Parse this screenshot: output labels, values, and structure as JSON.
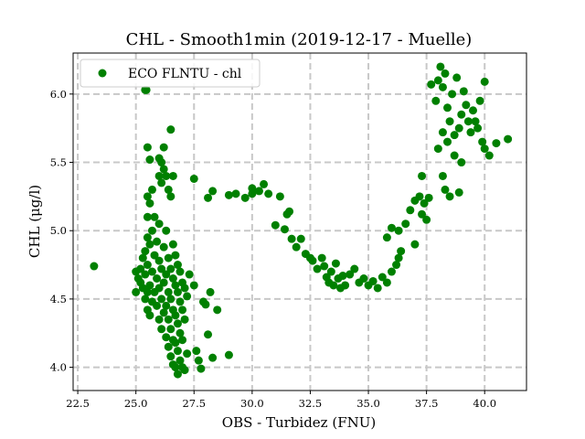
{
  "chart_data": {
    "type": "scatter",
    "title": "CHL - Smooth1min (2019-12-17 - Muelle)",
    "xlabel": "OBS - Turbidez (FNU)",
    "ylabel": "CHL (μg/l)",
    "xlim": [
      22.3,
      41.8
    ],
    "ylim": [
      3.83,
      6.3
    ],
    "xticks": [
      "22.5",
      "25.0",
      "27.5",
      "30.0",
      "32.5",
      "35.0",
      "37.5",
      "40.0"
    ],
    "yticks": [
      "4.0",
      "4.5",
      "5.0",
      "5.5",
      "6.0"
    ],
    "grid": true,
    "grid_style": "dashed",
    "legend_position": "top-left",
    "series": [
      {
        "name": "ECO FLNTU - chl",
        "color": "#008000",
        "points": [
          [
            23.2,
            4.74
          ],
          [
            25.0,
            4.55
          ],
          [
            25.0,
            4.7
          ],
          [
            25.1,
            4.65
          ],
          [
            25.2,
            4.62
          ],
          [
            25.2,
            4.72
          ],
          [
            25.3,
            4.58
          ],
          [
            25.3,
            4.8
          ],
          [
            25.4,
            4.5
          ],
          [
            25.4,
            4.68
          ],
          [
            25.4,
            4.85
          ],
          [
            25.5,
            4.42
          ],
          [
            25.5,
            4.55
          ],
          [
            25.5,
            4.75
          ],
          [
            25.5,
            4.95
          ],
          [
            25.5,
            5.1
          ],
          [
            25.5,
            5.25
          ],
          [
            25.6,
            4.38
          ],
          [
            25.6,
            4.6
          ],
          [
            25.6,
            4.9
          ],
          [
            25.6,
            5.2
          ],
          [
            25.4,
            6.03
          ],
          [
            25.45,
            6.03
          ],
          [
            25.5,
            5.61
          ],
          [
            25.6,
            5.52
          ],
          [
            25.7,
            4.48
          ],
          [
            25.7,
            4.7
          ],
          [
            25.7,
            5.0
          ],
          [
            25.7,
            5.3
          ],
          [
            25.8,
            4.55
          ],
          [
            25.8,
            4.82
          ],
          [
            25.8,
            5.1
          ],
          [
            25.9,
            4.45
          ],
          [
            25.9,
            4.65
          ],
          [
            25.9,
            4.92
          ],
          [
            26.0,
            4.35
          ],
          [
            26.0,
            4.58
          ],
          [
            26.0,
            4.78
          ],
          [
            26.0,
            5.05
          ],
          [
            26.0,
            5.4
          ],
          [
            26.0,
            5.53
          ],
          [
            26.1,
            4.28
          ],
          [
            26.1,
            4.5
          ],
          [
            26.1,
            4.72
          ],
          [
            26.1,
            5.35
          ],
          [
            26.1,
            5.5
          ],
          [
            26.2,
            4.4
          ],
          [
            26.2,
            4.62
          ],
          [
            26.2,
            4.88
          ],
          [
            26.2,
            5.61
          ],
          [
            26.2,
            5.45
          ],
          [
            26.3,
            4.22
          ],
          [
            26.3,
            4.45
          ],
          [
            26.3,
            4.68
          ],
          [
            26.3,
            5.0
          ],
          [
            26.3,
            5.4
          ],
          [
            26.4,
            4.15
          ],
          [
            26.4,
            4.35
          ],
          [
            26.4,
            4.55
          ],
          [
            26.4,
            4.8
          ],
          [
            26.4,
            5.3
          ],
          [
            26.5,
            4.08
          ],
          [
            26.5,
            4.28
          ],
          [
            26.5,
            4.5
          ],
          [
            26.5,
            4.72
          ],
          [
            26.5,
            5.25
          ],
          [
            26.5,
            5.74
          ],
          [
            26.6,
            4.02
          ],
          [
            26.6,
            4.2
          ],
          [
            26.6,
            4.42
          ],
          [
            26.6,
            4.65
          ],
          [
            26.6,
            4.9
          ],
          [
            26.6,
            5.4
          ],
          [
            26.7,
            4.0
          ],
          [
            26.7,
            4.18
          ],
          [
            26.7,
            4.38
          ],
          [
            26.7,
            4.6
          ],
          [
            26.7,
            4.82
          ],
          [
            26.8,
            3.95
          ],
          [
            26.8,
            4.12
          ],
          [
            26.8,
            4.32
          ],
          [
            26.8,
            4.55
          ],
          [
            26.8,
            4.75
          ],
          [
            26.9,
            4.05
          ],
          [
            26.9,
            4.25
          ],
          [
            26.9,
            4.48
          ],
          [
            26.9,
            4.7
          ],
          [
            27.0,
            4.0
          ],
          [
            27.0,
            4.2
          ],
          [
            27.0,
            4.42
          ],
          [
            27.0,
            4.62
          ],
          [
            27.1,
            3.98
          ],
          [
            27.1,
            4.35
          ],
          [
            27.1,
            4.58
          ],
          [
            27.2,
            4.1
          ],
          [
            27.2,
            4.52
          ],
          [
            27.3,
            4.68
          ],
          [
            27.5,
            5.38
          ],
          [
            27.5,
            4.6
          ],
          [
            27.6,
            4.12
          ],
          [
            27.7,
            4.05
          ],
          [
            27.8,
            3.99
          ],
          [
            27.9,
            4.48
          ],
          [
            28.0,
            4.46
          ],
          [
            28.1,
            4.24
          ],
          [
            28.2,
            4.55
          ],
          [
            28.3,
            4.07
          ],
          [
            28.5,
            4.42
          ],
          [
            28.1,
            5.24
          ],
          [
            28.3,
            5.29
          ],
          [
            29.0,
            4.09
          ],
          [
            29.0,
            5.26
          ],
          [
            29.3,
            5.27
          ],
          [
            29.7,
            5.24
          ],
          [
            30.0,
            5.31
          ],
          [
            30.0,
            5.27
          ],
          [
            30.3,
            5.29
          ],
          [
            30.5,
            5.34
          ],
          [
            30.7,
            5.27
          ],
          [
            31.0,
            5.04
          ],
          [
            31.2,
            5.25
          ],
          [
            31.4,
            5.01
          ],
          [
            31.5,
            5.12
          ],
          [
            31.6,
            5.14
          ],
          [
            31.7,
            4.94
          ],
          [
            31.9,
            4.88
          ],
          [
            32.1,
            4.94
          ],
          [
            32.3,
            4.83
          ],
          [
            32.5,
            4.8
          ],
          [
            32.6,
            4.78
          ],
          [
            32.8,
            4.72
          ],
          [
            33.0,
            4.8
          ],
          [
            33.1,
            4.74
          ],
          [
            33.2,
            4.66
          ],
          [
            33.3,
            4.62
          ],
          [
            33.4,
            4.7
          ],
          [
            33.5,
            4.6
          ],
          [
            33.6,
            4.76
          ],
          [
            33.7,
            4.65
          ],
          [
            33.8,
            4.58
          ],
          [
            33.9,
            4.67
          ],
          [
            34.0,
            4.6
          ],
          [
            34.2,
            4.68
          ],
          [
            34.4,
            4.72
          ],
          [
            34.6,
            4.62
          ],
          [
            34.8,
            4.65
          ],
          [
            35.0,
            4.6
          ],
          [
            35.2,
            4.63
          ],
          [
            35.4,
            4.58
          ],
          [
            35.6,
            4.66
          ],
          [
            35.8,
            4.62
          ],
          [
            36.0,
            4.7
          ],
          [
            36.2,
            4.75
          ],
          [
            36.3,
            4.8
          ],
          [
            36.4,
            4.85
          ],
          [
            35.8,
            4.95
          ],
          [
            36.0,
            5.02
          ],
          [
            36.3,
            5.0
          ],
          [
            36.6,
            5.05
          ],
          [
            36.8,
            5.15
          ],
          [
            37.0,
            5.22
          ],
          [
            37.2,
            5.25
          ],
          [
            37.4,
            5.2
          ],
          [
            37.6,
            5.24
          ],
          [
            37.3,
            5.12
          ],
          [
            37.0,
            4.9
          ],
          [
            37.5,
            5.08
          ],
          [
            37.3,
            5.4
          ],
          [
            37.7,
            6.07
          ],
          [
            37.9,
            5.95
          ],
          [
            38.0,
            6.1
          ],
          [
            38.1,
            6.2
          ],
          [
            38.2,
            6.05
          ],
          [
            38.3,
            6.15
          ],
          [
            38.4,
            5.9
          ],
          [
            38.5,
            5.8
          ],
          [
            38.6,
            6.0
          ],
          [
            38.7,
            5.7
          ],
          [
            38.8,
            6.12
          ],
          [
            38.9,
            5.75
          ],
          [
            39.0,
            5.85
          ],
          [
            39.1,
            6.02
          ],
          [
            39.2,
            5.92
          ],
          [
            39.3,
            5.8
          ],
          [
            39.4,
            5.72
          ],
          [
            39.5,
            5.88
          ],
          [
            39.6,
            5.8
          ],
          [
            39.7,
            5.75
          ],
          [
            39.8,
            5.95
          ],
          [
            39.9,
            5.65
          ],
          [
            40.0,
            5.6
          ],
          [
            40.0,
            6.09
          ],
          [
            40.2,
            5.55
          ],
          [
            40.5,
            5.64
          ],
          [
            41.0,
            5.67
          ],
          [
            38.0,
            5.6
          ],
          [
            38.2,
            5.4
          ],
          [
            38.3,
            5.3
          ],
          [
            38.5,
            5.25
          ],
          [
            38.7,
            5.55
          ],
          [
            38.9,
            5.28
          ],
          [
            39.0,
            5.5
          ],
          [
            38.4,
            5.65
          ],
          [
            38.2,
            5.72
          ]
        ]
      }
    ]
  }
}
